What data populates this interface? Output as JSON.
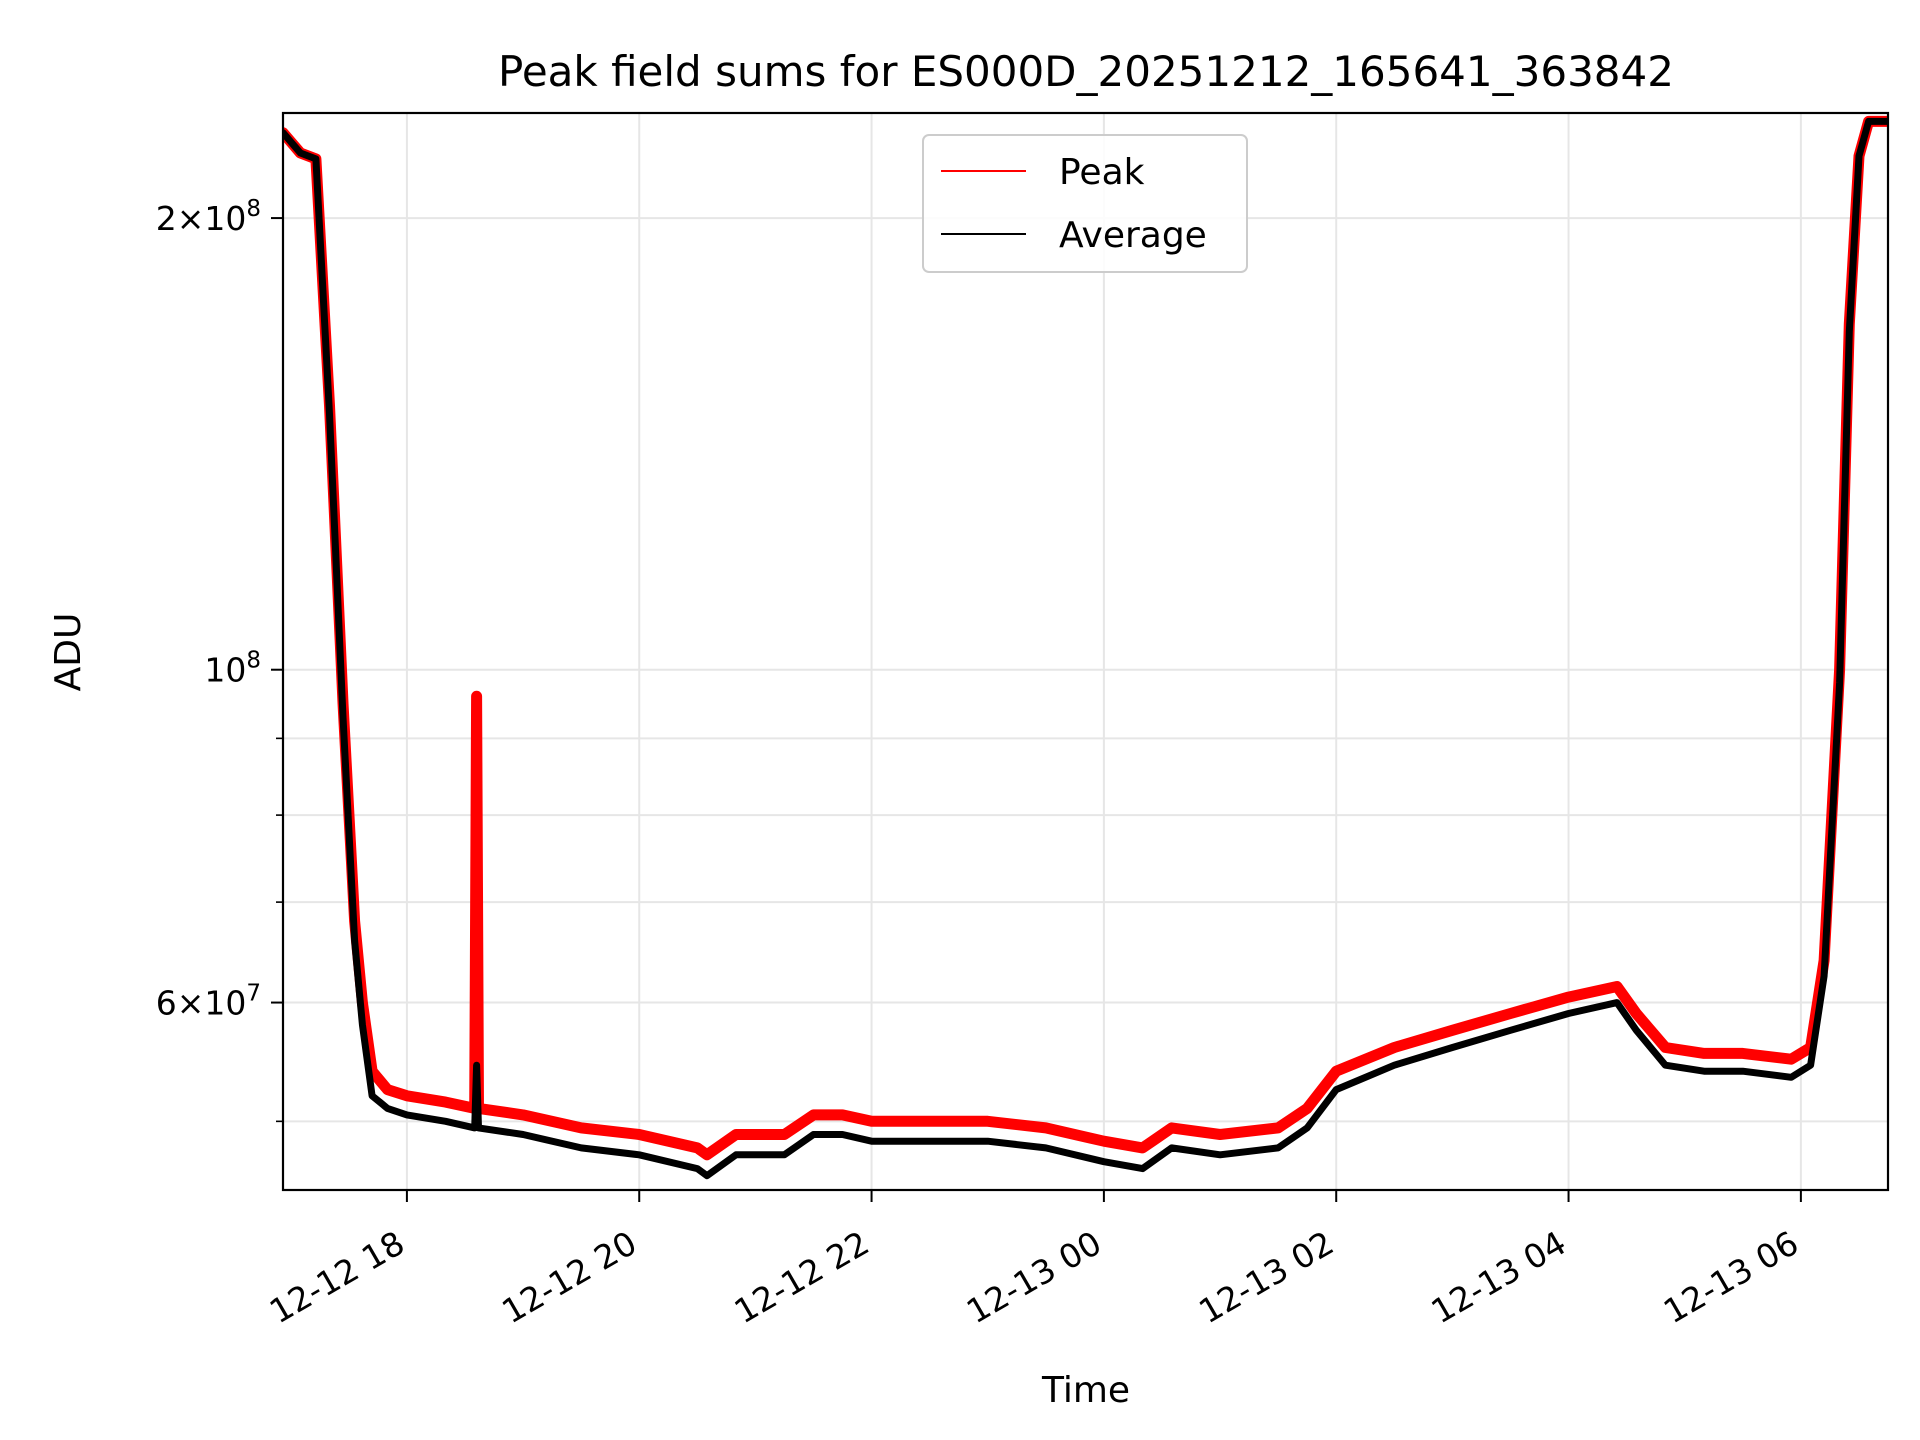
{
  "chart_data": {
    "type": "line",
    "title": "Peak field sums for ES000D_20251212_165641_363842",
    "xlabel": "Time",
    "ylabel": "ADU",
    "y_scale": "log",
    "ylim": [
      45000000,
      235000000
    ],
    "xlim": [
      "2025-12-12 16:56",
      "2025-12-13 06:45"
    ],
    "grid": true,
    "legend_position": "top-center",
    "x_ticks": [
      {
        "value": "2025-12-12 18:00",
        "label": "12-12 18"
      },
      {
        "value": "2025-12-12 20:00",
        "label": "12-12 20"
      },
      {
        "value": "2025-12-12 22:00",
        "label": "12-12 22"
      },
      {
        "value": "2025-12-13 00:00",
        "label": "12-13 00"
      },
      {
        "value": "2025-12-13 02:00",
        "label": "12-13 02"
      },
      {
        "value": "2025-12-13 04:00",
        "label": "12-13 04"
      },
      {
        "value": "2025-12-13 06:00",
        "label": "12-13 06"
      }
    ],
    "y_ticks": [
      {
        "value": 200000000,
        "base": "2×10",
        "exp": "8"
      },
      {
        "value": 100000000,
        "base": "10",
        "exp": "8"
      },
      {
        "value": 60000000,
        "base": "6×10",
        "exp": "7"
      }
    ],
    "y_minor_ticks": [
      50000000,
      70000000,
      80000000,
      90000000
    ],
    "series": [
      {
        "name": "Peak",
        "color": "#ff0000",
        "x": [
          "2025-12-12 16:56",
          "2025-12-12 17:05",
          "2025-12-12 17:13",
          "2025-12-12 17:20",
          "2025-12-12 17:27",
          "2025-12-12 17:33",
          "2025-12-12 17:37",
          "2025-12-12 17:42",
          "2025-12-12 17:50",
          "2025-12-12 18:00",
          "2025-12-12 18:20",
          "2025-12-12 18:35",
          "2025-12-12 18:36",
          "2025-12-12 18:37",
          "2025-12-12 19:00",
          "2025-12-12 19:30",
          "2025-12-12 20:00",
          "2025-12-12 20:30",
          "2025-12-12 20:35",
          "2025-12-12 20:50",
          "2025-12-12 21:15",
          "2025-12-12 21:30",
          "2025-12-12 21:45",
          "2025-12-12 22:00",
          "2025-12-12 22:30",
          "2025-12-12 23:00",
          "2025-12-12 23:30",
          "2025-12-13 00:00",
          "2025-12-13 00:20",
          "2025-12-13 00:35",
          "2025-12-13 01:00",
          "2025-12-13 01:30",
          "2025-12-13 01:45",
          "2025-12-13 02:00",
          "2025-12-13 02:30",
          "2025-12-13 03:00",
          "2025-12-13 03:30",
          "2025-12-13 04:00",
          "2025-12-13 04:25",
          "2025-12-13 04:35",
          "2025-12-13 04:50",
          "2025-12-13 05:10",
          "2025-12-13 05:30",
          "2025-12-13 05:55",
          "2025-12-13 06:05",
          "2025-12-13 06:12",
          "2025-12-13 06:20",
          "2025-12-13 06:25",
          "2025-12-13 06:30",
          "2025-12-13 06:35",
          "2025-12-13 06:45"
        ],
        "y": [
          228000000,
          221000000,
          219000000,
          150000000,
          95000000,
          68000000,
          60000000,
          54000000,
          52500000,
          52000000,
          51500000,
          51000000,
          96000000,
          51000000,
          50500000,
          49500000,
          49000000,
          48000000,
          47500000,
          49000000,
          49000000,
          50500000,
          50500000,
          50000000,
          50000000,
          50000000,
          49500000,
          48500000,
          48000000,
          49500000,
          49000000,
          49500000,
          51000000,
          54000000,
          56000000,
          57500000,
          59000000,
          60500000,
          61500000,
          59000000,
          56000000,
          55500000,
          55500000,
          55000000,
          56000000,
          64000000,
          100000000,
          170000000,
          220000000,
          232000000,
          232000000
        ]
      },
      {
        "name": "Average",
        "color": "#000000",
        "x": [
          "2025-12-12 16:56",
          "2025-12-12 17:05",
          "2025-12-12 17:13",
          "2025-12-12 17:20",
          "2025-12-12 17:27",
          "2025-12-12 17:33",
          "2025-12-12 17:37",
          "2025-12-12 17:42",
          "2025-12-12 17:50",
          "2025-12-12 18:00",
          "2025-12-12 18:20",
          "2025-12-12 18:35",
          "2025-12-12 18:36",
          "2025-12-12 18:37",
          "2025-12-12 19:00",
          "2025-12-12 19:30",
          "2025-12-12 20:00",
          "2025-12-12 20:30",
          "2025-12-12 20:35",
          "2025-12-12 20:50",
          "2025-12-12 21:15",
          "2025-12-12 21:30",
          "2025-12-12 21:45",
          "2025-12-12 22:00",
          "2025-12-12 22:30",
          "2025-12-12 23:00",
          "2025-12-12 23:30",
          "2025-12-13 00:00",
          "2025-12-13 00:20",
          "2025-12-13 00:35",
          "2025-12-13 01:00",
          "2025-12-13 01:30",
          "2025-12-13 01:45",
          "2025-12-13 02:00",
          "2025-12-13 02:30",
          "2025-12-13 03:00",
          "2025-12-13 03:30",
          "2025-12-13 04:00",
          "2025-12-13 04:25",
          "2025-12-13 04:35",
          "2025-12-13 04:50",
          "2025-12-13 05:10",
          "2025-12-13 05:30",
          "2025-12-13 05:55",
          "2025-12-13 06:05",
          "2025-12-13 06:12",
          "2025-12-13 06:20",
          "2025-12-13 06:25",
          "2025-12-13 06:30",
          "2025-12-13 06:35",
          "2025-12-13 06:45"
        ],
        "y": [
          228000000,
          221000000,
          219000000,
          148000000,
          93000000,
          66000000,
          58000000,
          52000000,
          51000000,
          50500000,
          50000000,
          49500000,
          54500000,
          49500000,
          49000000,
          48000000,
          47500000,
          46500000,
          46000000,
          47500000,
          47500000,
          49000000,
          49000000,
          48500000,
          48500000,
          48500000,
          48000000,
          47000000,
          46500000,
          48000000,
          47500000,
          48000000,
          49500000,
          52500000,
          54500000,
          56000000,
          57500000,
          59000000,
          60000000,
          57500000,
          54500000,
          54000000,
          54000000,
          53500000,
          54500000,
          62500000,
          98000000,
          168000000,
          220000000,
          232000000,
          232000000
        ]
      }
    ]
  }
}
